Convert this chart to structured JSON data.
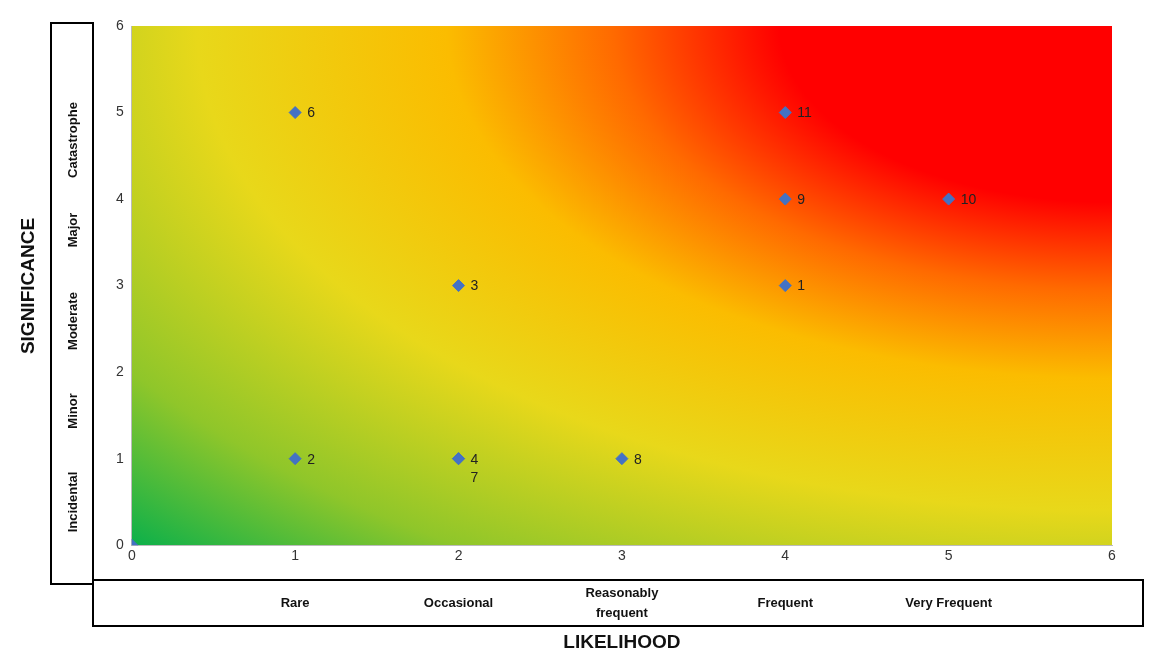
{
  "chart_data": {
    "type": "scatter",
    "xlabel": "LIKELIHOOD",
    "ylabel": "SIGNIFICANCE",
    "x": [
      4,
      1,
      2,
      2,
      1,
      2,
      3,
      4,
      5,
      4,
      0
    ],
    "series": [
      {
        "color": "#4472c4",
        "values": [
          3,
          1,
          3,
          1,
          5,
          1,
          1,
          4,
          4,
          5,
          0
        ]
      }
    ],
    "value_labels": [
      "1",
      "2",
      "3",
      "4",
      "6",
      "7",
      "8",
      "9",
      "10",
      "11",
      null
    ],
    "xlim": [
      0,
      6
    ],
    "ylim": [
      0,
      6
    ],
    "xticks": [
      0,
      1,
      2,
      3,
      4,
      5,
      6
    ],
    "yticks": [
      0,
      1,
      2,
      3,
      4,
      5,
      6
    ],
    "marker": "diamond",
    "grid": false,
    "legend": false,
    "annotations": [
      "Incidental",
      "Minor",
      "Moderate",
      "Major",
      "Catastrophe",
      "Rare",
      "Occasional",
      "Reasonably frequent",
      "Frequent",
      "Very Frequent"
    ]
  }
}
